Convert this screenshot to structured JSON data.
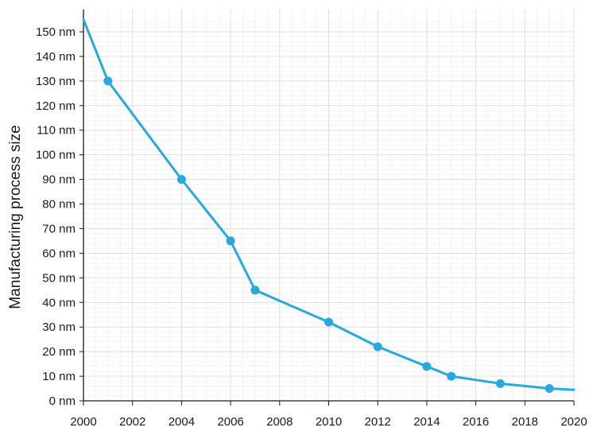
{
  "chart_data": {
    "type": "line",
    "title": "",
    "xlabel": "",
    "ylabel": "Manufacturing process size",
    "xlim": [
      2000,
      2020
    ],
    "ylim": [
      0,
      155
    ],
    "x_ticks": [
      2000,
      2002,
      2004,
      2006,
      2008,
      2010,
      2012,
      2014,
      2016,
      2018,
      2020
    ],
    "x_tick_labels": [
      "2000",
      "2002",
      "2004",
      "2006",
      "2008",
      "2010",
      "2012",
      "2014",
      "2016",
      "2018",
      "2020"
    ],
    "y_ticks": [
      0,
      10,
      20,
      30,
      40,
      50,
      60,
      70,
      80,
      90,
      100,
      110,
      120,
      130,
      140,
      150
    ],
    "y_tick_labels": [
      "0 nm",
      "10 nm",
      "20 nm",
      "30 nm",
      "40 nm",
      "50 nm",
      "60 nm",
      "70 nm",
      "80 nm",
      "90 nm",
      "100 nm",
      "110 nm",
      "120 nm",
      "130 nm",
      "140 nm",
      "150 nm"
    ],
    "grid": true,
    "line_color": "#29a8e0",
    "grid_color": "#dcdcdc",
    "series": [
      {
        "x": [
          2000,
          2001,
          2004,
          2006,
          2007,
          2010,
          2012,
          2014,
          2015,
          2017,
          2019,
          2020
        ],
        "y": [
          155,
          130,
          90,
          65,
          45,
          32,
          22,
          14,
          10,
          7,
          5,
          4.5
        ],
        "markers": [
          false,
          true,
          true,
          true,
          true,
          true,
          true,
          true,
          true,
          true,
          true,
          false
        ]
      }
    ]
  }
}
